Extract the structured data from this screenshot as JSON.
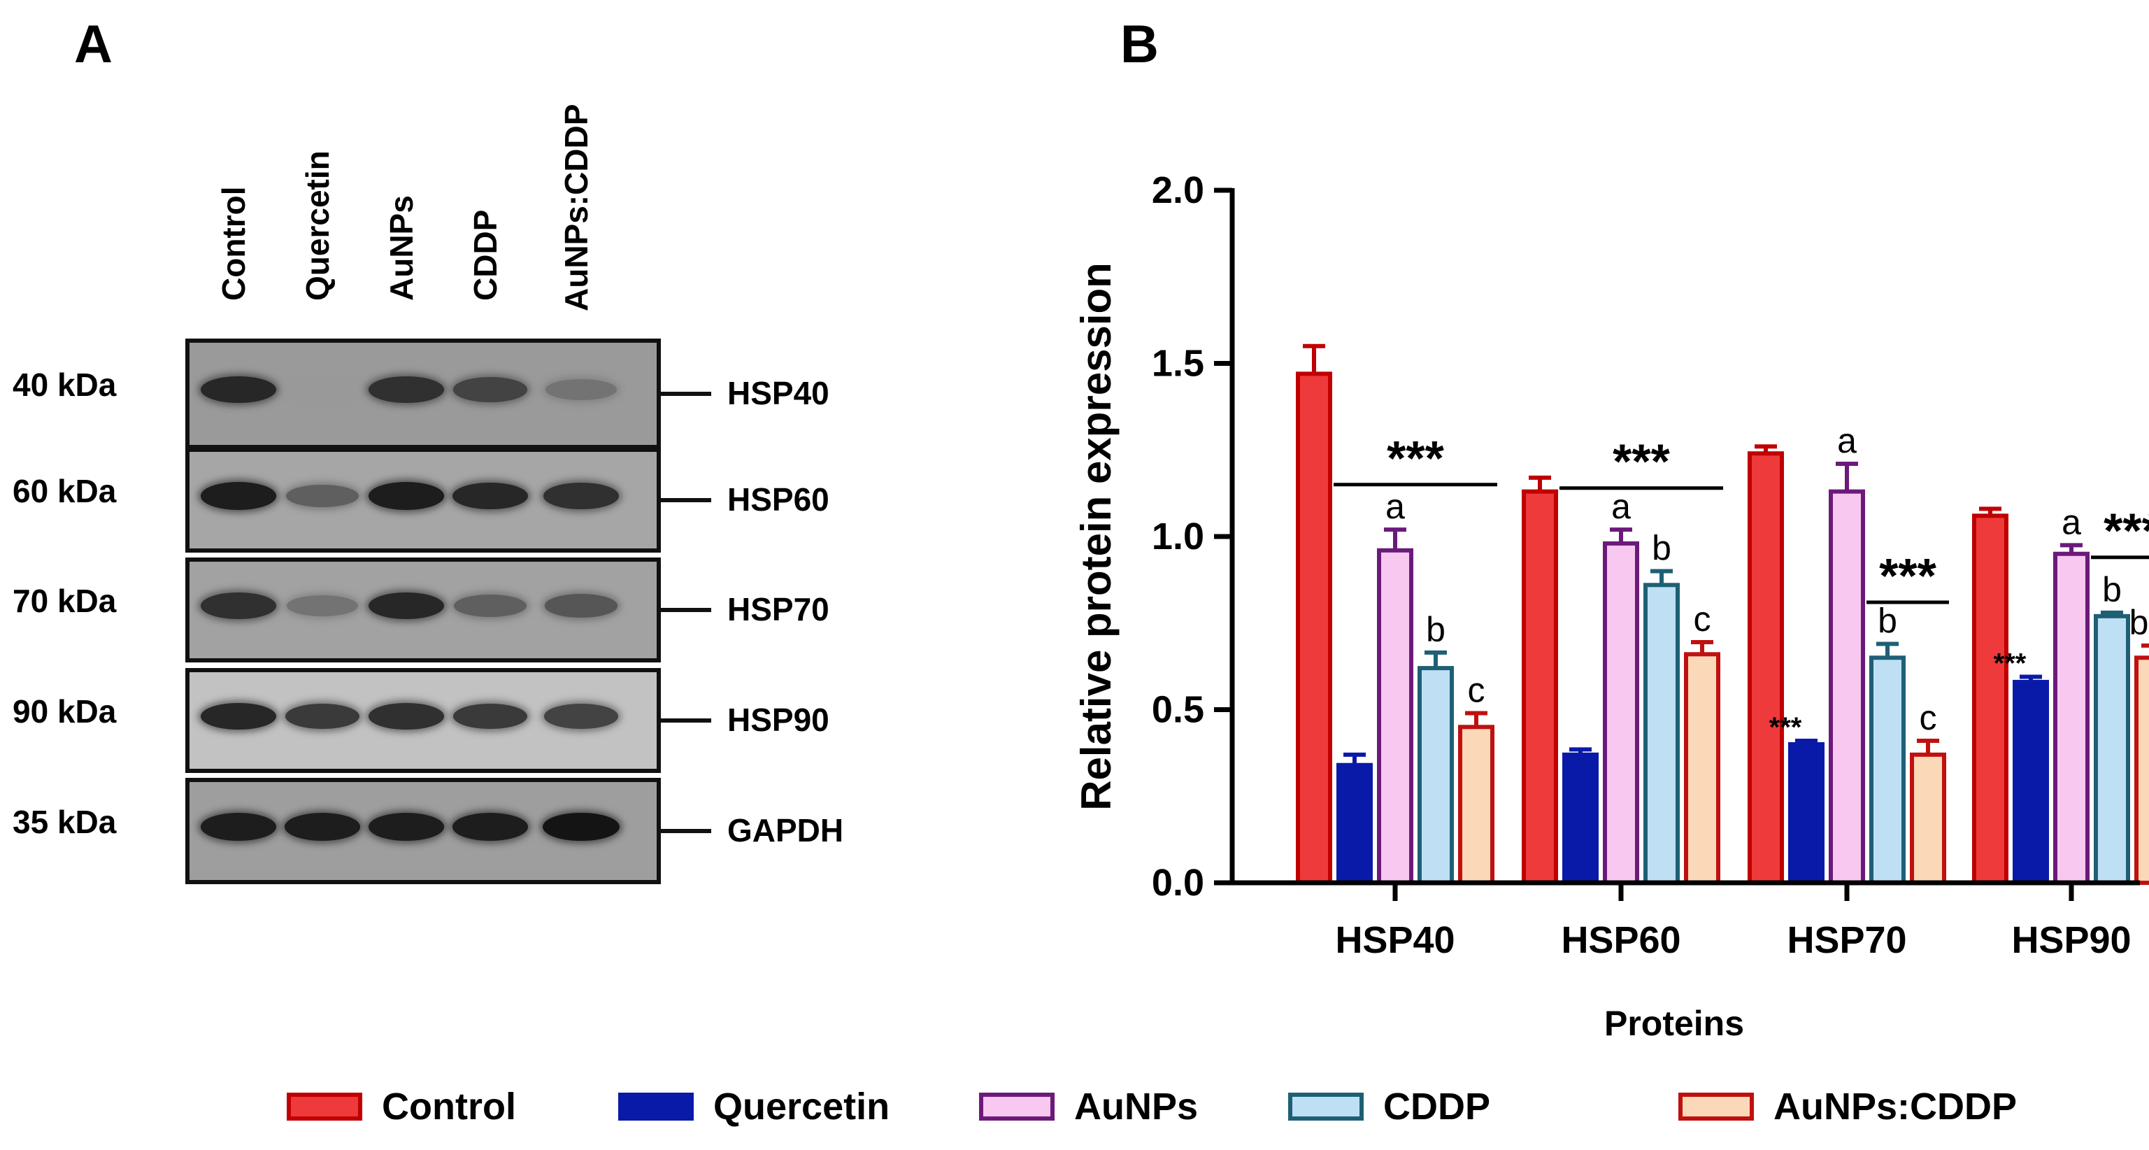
{
  "panel_a": {
    "letter": "A",
    "lanes": [
      "Control",
      "Quercetin",
      "AuNPs",
      "CDDP",
      "AuNPs:CDDP"
    ],
    "blots": [
      {
        "kda": "40 kDa",
        "protein": "HSP40",
        "intensity": [
          0.85,
          0.25,
          0.8,
          0.7,
          0.45
        ]
      },
      {
        "kda": "60 kDa",
        "protein": "HSP60",
        "intensity": [
          0.9,
          0.55,
          0.9,
          0.85,
          0.8
        ]
      },
      {
        "kda": "70 kDa",
        "protein": "HSP70",
        "intensity": [
          0.8,
          0.45,
          0.85,
          0.55,
          0.6
        ]
      },
      {
        "kda": "90 kDa",
        "protein": "HSP90",
        "intensity": [
          0.85,
          0.75,
          0.8,
          0.75,
          0.7
        ]
      },
      {
        "kda": "35 kDa",
        "protein": "GAPDH",
        "intensity": [
          0.9,
          0.9,
          0.9,
          0.9,
          0.95
        ]
      }
    ]
  },
  "panel_b": {
    "letter": "B"
  },
  "chart_data": {
    "type": "bar",
    "title": "",
    "xlabel": "Proteins",
    "ylabel": "Relative protein expression",
    "ylim": [
      0,
      2.0
    ],
    "yticks": [
      "0.0",
      "0.5",
      "1.0",
      "1.5",
      "2.0"
    ],
    "categories": [
      "HSP40",
      "HSP60",
      "HSP70",
      "HSP90"
    ],
    "series": [
      {
        "name": "Control",
        "fill": "#ee3a3a",
        "edge": "#c00000",
        "values": [
          1.47,
          1.13,
          1.24,
          1.06
        ],
        "errors": [
          0.08,
          0.04,
          0.02,
          0.02
        ]
      },
      {
        "name": "Quercetin",
        "fill": "#0a1aa8",
        "edge": "#0a1aa8",
        "values": [
          0.34,
          0.37,
          0.4,
          0.58
        ],
        "errors": [
          0.03,
          0.015,
          0.01,
          0.015
        ]
      },
      {
        "name": "AuNPs",
        "fill": "#f8c8f0",
        "edge": "#6b1a7a",
        "values": [
          0.96,
          0.98,
          1.13,
          0.95
        ],
        "errors": [
          0.06,
          0.04,
          0.08,
          0.025
        ]
      },
      {
        "name": "CDDP",
        "fill": "#bfe0f4",
        "edge": "#1f5f75",
        "values": [
          0.62,
          0.86,
          0.65,
          0.77
        ],
        "errors": [
          0.045,
          0.04,
          0.04,
          0.01
        ]
      },
      {
        "name": "AuNPs:CDDP",
        "fill": "#fbd9b8",
        "edge": "#c01010",
        "values": [
          0.45,
          0.66,
          0.37,
          0.65
        ],
        "errors": [
          0.04,
          0.035,
          0.04,
          0.035
        ]
      }
    ],
    "letters": [
      {
        "category": "HSP40",
        "series": "AuNPs",
        "text": "a"
      },
      {
        "category": "HSP40",
        "series": "CDDP",
        "text": "b"
      },
      {
        "category": "HSP40",
        "series": "AuNPs:CDDP",
        "text": "c"
      },
      {
        "category": "HSP60",
        "series": "AuNPs",
        "text": "a"
      },
      {
        "category": "HSP60",
        "series": "CDDP",
        "text": "b"
      },
      {
        "category": "HSP60",
        "series": "AuNPs:CDDP",
        "text": "c"
      },
      {
        "category": "HSP70",
        "series": "AuNPs",
        "text": "a"
      },
      {
        "category": "HSP70",
        "series": "CDDP",
        "text": "b"
      },
      {
        "category": "HSP70",
        "series": "AuNPs:CDDP",
        "text": "c"
      },
      {
        "category": "HSP90",
        "series": "AuNPs",
        "text": "a"
      },
      {
        "category": "HSP90",
        "series": "CDDP",
        "text": "b"
      },
      {
        "category": "HSP90",
        "series": "AuNPs:CDDP",
        "text": "b,c"
      }
    ],
    "significance_bars": [
      {
        "category": "HSP40",
        "from_series": "Quercetin",
        "to_series": "AuNPs:CDDP",
        "y": 1.15,
        "text": "***"
      },
      {
        "category": "HSP60",
        "from_series": "Quercetin",
        "to_series": "AuNPs:CDDP",
        "y": 1.14,
        "text": "***"
      },
      {
        "category": "HSP70",
        "from_series": "CDDP",
        "to_series": "AuNPs:CDDP",
        "y": 0.81,
        "text": "***"
      },
      {
        "category": "HSP90",
        "from_series": "CDDP",
        "to_series": "AuNPs:CDDP",
        "y": 0.94,
        "text": "***"
      }
    ],
    "small_stars": [
      {
        "category": "HSP70",
        "series": "Quercetin",
        "text": "***"
      },
      {
        "category": "HSP90",
        "series": "Quercetin",
        "text": "***"
      }
    ]
  }
}
